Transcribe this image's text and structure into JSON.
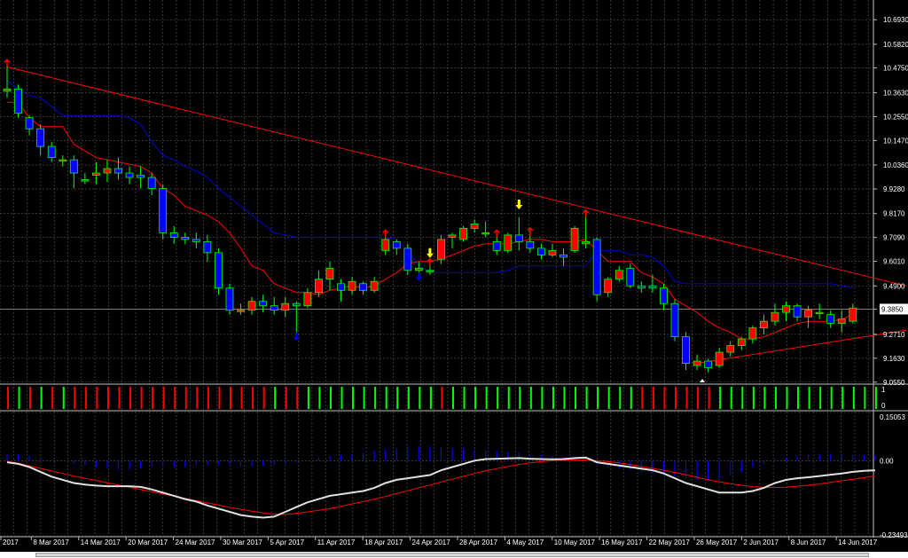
{
  "chart_data": [
    {
      "type": "candlestick",
      "ylim": [
        9.05,
        10.75
      ],
      "y_axis_labels": [
        "10.6930",
        "10.5820",
        "10.4750",
        "10.3630",
        "10.2550",
        "10.1470",
        "10.0360",
        "9.9280",
        "9.8170",
        "9.7090",
        "9.6010",
        "9.4900",
        "9.3850",
        "9.2710",
        "9.1630",
        "9.0550"
      ],
      "y_axis_values": [
        10.693,
        10.582,
        10.475,
        10.363,
        10.255,
        10.147,
        10.036,
        9.928,
        9.817,
        9.709,
        9.601,
        9.49,
        9.385,
        9.271,
        9.163,
        9.055
      ],
      "current_price": "9.3850",
      "current_price_value": 9.385,
      "x_axis_labels": [
        "2017",
        "8 Mar 2017",
        "14 Mar 2017",
        "20 Mar 2017",
        "24 Mar 2017",
        "30 Mar 2017",
        "5 Apr 2017",
        "11 Apr 2017",
        "18 Apr 2017",
        "24 Apr 2017",
        "28 Apr 2017",
        "4 May 2017",
        "10 May 2017",
        "16 May 2017",
        "22 May 2017",
        "26 May 2017",
        "2 Jun 2017",
        "8 Jun 2017",
        "14 Jun 2017"
      ],
      "candles": [
        {
          "o": 10.37,
          "h": 10.48,
          "l": 10.34,
          "c": 10.38
        },
        {
          "o": 10.38,
          "h": 10.4,
          "l": 10.25,
          "c": 10.27
        },
        {
          "o": 10.25,
          "h": 10.26,
          "l": 10.17,
          "c": 10.2
        },
        {
          "o": 10.2,
          "h": 10.22,
          "l": 10.08,
          "c": 10.12
        },
        {
          "o": 10.12,
          "h": 10.14,
          "l": 10.05,
          "c": 10.07
        },
        {
          "o": 10.06,
          "h": 10.08,
          "l": 10.03,
          "c": 10.06
        },
        {
          "o": 10.06,
          "h": 10.08,
          "l": 9.93,
          "c": 10.0
        },
        {
          "o": 9.97,
          "h": 10.0,
          "l": 9.95,
          "c": 9.97
        },
        {
          "o": 9.99,
          "h": 10.05,
          "l": 9.95,
          "c": 10.0
        },
        {
          "o": 10.0,
          "h": 10.06,
          "l": 9.96,
          "c": 10.02
        },
        {
          "o": 10.02,
          "h": 10.07,
          "l": 9.97,
          "c": 10.0
        },
        {
          "o": 10.0,
          "h": 10.03,
          "l": 9.95,
          "c": 9.98
        },
        {
          "o": 9.99,
          "h": 10.03,
          "l": 9.93,
          "c": 9.98
        },
        {
          "o": 9.98,
          "h": 10.0,
          "l": 9.9,
          "c": 9.93
        },
        {
          "o": 9.93,
          "h": 9.95,
          "l": 9.7,
          "c": 9.73
        },
        {
          "o": 9.73,
          "h": 9.76,
          "l": 9.68,
          "c": 9.71
        },
        {
          "o": 9.71,
          "h": 9.73,
          "l": 9.68,
          "c": 9.7
        },
        {
          "o": 9.7,
          "h": 9.73,
          "l": 9.66,
          "c": 9.69
        },
        {
          "o": 9.69,
          "h": 9.72,
          "l": 9.6,
          "c": 9.64
        },
        {
          "o": 9.64,
          "h": 9.66,
          "l": 9.45,
          "c": 9.48
        },
        {
          "o": 9.48,
          "h": 9.5,
          "l": 9.36,
          "c": 9.38
        },
        {
          "o": 9.38,
          "h": 9.41,
          "l": 9.36,
          "c": 9.38
        },
        {
          "o": 9.38,
          "h": 9.44,
          "l": 9.36,
          "c": 9.42
        },
        {
          "o": 9.42,
          "h": 9.45,
          "l": 9.37,
          "c": 9.4
        },
        {
          "o": 9.4,
          "h": 9.44,
          "l": 9.36,
          "c": 9.38
        },
        {
          "o": 9.38,
          "h": 9.44,
          "l": 9.35,
          "c": 9.41
        },
        {
          "o": 9.41,
          "h": 9.42,
          "l": 9.28,
          "c": 9.4
        },
        {
          "o": 9.4,
          "h": 9.48,
          "l": 9.39,
          "c": 9.46
        },
        {
          "o": 9.46,
          "h": 9.56,
          "l": 9.44,
          "c": 9.52
        },
        {
          "o": 9.52,
          "h": 9.6,
          "l": 9.47,
          "c": 9.57
        },
        {
          "o": 9.5,
          "h": 9.52,
          "l": 9.42,
          "c": 9.47
        },
        {
          "o": 9.47,
          "h": 9.53,
          "l": 9.45,
          "c": 9.51
        },
        {
          "o": 9.5,
          "h": 9.51,
          "l": 9.45,
          "c": 9.47
        },
        {
          "o": 9.47,
          "h": 9.53,
          "l": 9.46,
          "c": 9.51
        },
        {
          "o": 9.65,
          "h": 9.71,
          "l": 9.63,
          "c": 9.7
        },
        {
          "o": 9.69,
          "h": 9.7,
          "l": 9.63,
          "c": 9.66
        },
        {
          "o": 9.66,
          "h": 9.68,
          "l": 9.54,
          "c": 9.56
        },
        {
          "o": 9.56,
          "h": 9.6,
          "l": 9.55,
          "c": 9.57
        },
        {
          "o": 9.56,
          "h": 9.58,
          "l": 9.54,
          "c": 9.56
        },
        {
          "o": 9.61,
          "h": 9.72,
          "l": 9.59,
          "c": 9.7
        },
        {
          "o": 9.71,
          "h": 9.73,
          "l": 9.66,
          "c": 9.72
        },
        {
          "o": 9.7,
          "h": 9.76,
          "l": 9.69,
          "c": 9.75
        },
        {
          "o": 9.75,
          "h": 9.79,
          "l": 9.73,
          "c": 9.77
        },
        {
          "o": 9.73,
          "h": 9.78,
          "l": 9.71,
          "c": 9.73
        },
        {
          "o": 9.69,
          "h": 9.71,
          "l": 9.63,
          "c": 9.65
        },
        {
          "o": 9.65,
          "h": 9.73,
          "l": 9.64,
          "c": 9.72
        },
        {
          "o": 9.72,
          "h": 9.8,
          "l": 9.65,
          "c": 9.69
        },
        {
          "o": 9.69,
          "h": 9.72,
          "l": 9.64,
          "c": 9.66
        },
        {
          "o": 9.66,
          "h": 9.68,
          "l": 9.61,
          "c": 9.63
        },
        {
          "o": 9.63,
          "h": 9.68,
          "l": 9.62,
          "c": 9.65
        },
        {
          "o": 9.63,
          "h": 9.66,
          "l": 9.58,
          "c": 9.62
        },
        {
          "o": 9.65,
          "h": 9.76,
          "l": 9.64,
          "c": 9.75
        },
        {
          "o": 9.68,
          "h": 9.8,
          "l": 9.66,
          "c": 9.69
        },
        {
          "o": 9.7,
          "h": 9.71,
          "l": 9.42,
          "c": 9.45
        },
        {
          "o": 9.46,
          "h": 9.53,
          "l": 9.44,
          "c": 9.52
        },
        {
          "o": 9.52,
          "h": 9.58,
          "l": 9.51,
          "c": 9.56
        },
        {
          "o": 9.57,
          "h": 9.59,
          "l": 9.48,
          "c": 9.49
        },
        {
          "o": 9.49,
          "h": 9.51,
          "l": 9.46,
          "c": 9.48
        },
        {
          "o": 9.49,
          "h": 9.54,
          "l": 9.46,
          "c": 9.48
        },
        {
          "o": 9.48,
          "h": 9.5,
          "l": 9.38,
          "c": 9.41
        },
        {
          "o": 9.41,
          "h": 9.43,
          "l": 9.24,
          "c": 9.26
        },
        {
          "o": 9.26,
          "h": 9.28,
          "l": 9.11,
          "c": 9.14
        },
        {
          "o": 9.13,
          "h": 9.18,
          "l": 9.11,
          "c": 9.15
        },
        {
          "o": 9.15,
          "h": 9.16,
          "l": 9.1,
          "c": 9.12
        },
        {
          "o": 9.13,
          "h": 9.21,
          "l": 9.12,
          "c": 9.19
        },
        {
          "o": 9.19,
          "h": 9.24,
          "l": 9.17,
          "c": 9.22
        },
        {
          "o": 9.22,
          "h": 9.26,
          "l": 9.2,
          "c": 9.25
        },
        {
          "o": 9.25,
          "h": 9.31,
          "l": 9.23,
          "c": 9.3
        },
        {
          "o": 9.3,
          "h": 9.36,
          "l": 9.27,
          "c": 9.33
        },
        {
          "o": 9.33,
          "h": 9.41,
          "l": 9.31,
          "c": 9.37
        },
        {
          "o": 9.37,
          "h": 9.42,
          "l": 9.33,
          "c": 9.4
        },
        {
          "o": 9.4,
          "h": 9.41,
          "l": 9.33,
          "c": 9.35
        },
        {
          "o": 9.35,
          "h": 9.4,
          "l": 9.3,
          "c": 9.38
        },
        {
          "o": 9.37,
          "h": 9.41,
          "l": 9.34,
          "c": 9.37
        },
        {
          "o": 9.36,
          "h": 9.38,
          "l": 9.3,
          "c": 9.32
        },
        {
          "o": 9.32,
          "h": 9.38,
          "l": 9.28,
          "c": 9.34
        },
        {
          "o": 9.33,
          "h": 9.41,
          "l": 9.32,
          "c": 9.39
        }
      ],
      "tenkan_line": [
        10.32,
        10.32,
        10.25,
        10.21,
        10.21,
        10.21,
        10.13,
        10.1,
        10.07,
        10.06,
        10.05,
        10.04,
        10.03,
        10.0,
        9.93,
        9.9,
        9.85,
        9.83,
        9.81,
        9.78,
        9.73,
        9.66,
        9.58,
        9.56,
        9.5,
        9.48,
        9.46,
        9.46,
        9.45,
        9.47,
        9.48,
        9.49,
        9.48,
        9.49,
        9.52,
        9.55,
        9.59,
        9.6,
        9.6,
        9.61,
        9.63,
        9.65,
        9.67,
        9.68,
        9.68,
        9.68,
        9.69,
        9.7,
        9.7,
        9.69,
        9.69,
        9.69,
        9.7,
        9.65,
        9.6,
        9.6,
        9.6,
        9.55,
        9.53,
        9.5,
        9.43,
        9.4,
        9.37,
        9.33,
        9.3,
        9.28,
        9.25,
        9.25,
        9.26,
        9.28,
        9.3,
        9.32,
        9.33,
        9.33,
        9.33,
        9.34,
        9.36
      ],
      "kijun_line": [
        10.42,
        10.38,
        10.35,
        10.34,
        10.3,
        10.26,
        10.26,
        10.26,
        10.26,
        10.26,
        10.26,
        10.25,
        10.22,
        10.14,
        10.08,
        10.06,
        10.03,
        10.01,
        9.98,
        9.93,
        9.89,
        9.85,
        9.81,
        9.77,
        9.73,
        9.72,
        9.71,
        9.71,
        9.71,
        9.71,
        9.71,
        9.71,
        9.71,
        9.71,
        9.71,
        9.7,
        9.65,
        9.58,
        9.55,
        9.55,
        9.55,
        9.55,
        9.55,
        9.55,
        9.55,
        9.56,
        9.58,
        9.58,
        9.58,
        9.58,
        9.58,
        9.58,
        9.58,
        9.65,
        9.65,
        9.65,
        9.63,
        9.63,
        9.62,
        9.58,
        9.51,
        9.5,
        9.5,
        9.5,
        9.5,
        9.5,
        9.5,
        9.5,
        9.5,
        9.5,
        9.5,
        9.5,
        9.5,
        9.5,
        9.5,
        9.49,
        9.48
      ],
      "trendline_upper": {
        "from": {
          "bar": 0,
          "price": 10.48
        },
        "to": {
          "bar": 80,
          "price": 9.49
        }
      },
      "trendline_lower": {
        "from": {
          "bar": 62,
          "price": 9.14
        },
        "to": {
          "bar": 80,
          "price": 9.29
        }
      },
      "signal_arrows": [
        {
          "bar": 38,
          "dir": "down",
          "type": "yellow-arrow"
        },
        {
          "bar": 46,
          "dir": "down",
          "type": "yellow-arrow"
        }
      ],
      "fractals_up": [
        0,
        34,
        38,
        44,
        47,
        52
      ],
      "fractals_down": [
        26,
        37
      ],
      "fractal_white_bar": 62
    },
    {
      "type": "histogram",
      "name": "trend-bars",
      "y_axis_labels": [
        "1",
        "0"
      ],
      "bars": [
        0,
        1,
        0,
        1,
        0,
        1,
        0,
        0,
        0,
        0,
        0,
        0,
        0,
        0,
        0,
        0,
        0,
        0,
        0,
        0,
        0,
        0,
        0,
        0,
        1,
        0,
        0,
        1,
        1,
        1,
        1,
        1,
        1,
        1,
        1,
        1,
        1,
        1,
        1,
        0,
        1,
        1,
        1,
        1,
        1,
        1,
        1,
        1,
        1,
        1,
        1,
        1,
        1,
        1,
        1,
        1,
        1,
        0,
        0,
        0,
        0,
        0,
        0,
        0,
        1,
        1,
        1,
        1,
        1,
        1,
        1,
        1,
        1,
        1,
        1,
        1,
        1,
        1,
        1
      ]
    },
    {
      "type": "line",
      "name": "oscillator",
      "y_axis_labels": [
        "0.15053",
        "0.00",
        "-0.23493"
      ],
      "y_axis_values": [
        0.15053,
        0.0,
        -0.23493
      ],
      "ylim": [
        -0.23493,
        0.15053
      ],
      "histogram": [
        0.02,
        0.02,
        0.015,
        0.01,
        0.005,
        0.0,
        -0.01,
        -0.015,
        -0.02,
        -0.025,
        -0.028,
        -0.028,
        -0.025,
        -0.02,
        -0.02,
        -0.02,
        -0.02,
        -0.018,
        -0.015,
        -0.012,
        -0.015,
        -0.018,
        -0.018,
        -0.015,
        -0.012,
        -0.01,
        -0.005,
        0.0,
        0.01,
        0.015,
        0.018,
        0.02,
        0.025,
        0.03,
        0.035,
        0.04,
        0.045,
        0.045,
        0.045,
        0.043,
        0.04,
        0.038,
        0.035,
        0.032,
        0.03,
        0.028,
        0.025,
        0.02,
        0.018,
        0.015,
        0.012,
        0.01,
        0.008,
        -0.01,
        -0.02,
        -0.025,
        -0.03,
        -0.035,
        -0.04,
        -0.045,
        -0.05,
        -0.055,
        -0.06,
        -0.06,
        -0.055,
        -0.045,
        -0.035,
        -0.02,
        -0.01,
        0.005,
        0.01,
        0.015,
        0.02,
        0.022,
        0.022,
        0.02,
        0.018,
        0.018,
        0.018
      ],
      "main_line": [
        -0.005,
        -0.01,
        -0.02,
        -0.035,
        -0.05,
        -0.06,
        -0.07,
        -0.075,
        -0.078,
        -0.08,
        -0.08,
        -0.08,
        -0.082,
        -0.09,
        -0.1,
        -0.11,
        -0.12,
        -0.128,
        -0.14,
        -0.15,
        -0.16,
        -0.17,
        -0.175,
        -0.178,
        -0.175,
        -0.16,
        -0.145,
        -0.13,
        -0.12,
        -0.11,
        -0.105,
        -0.1,
        -0.095,
        -0.085,
        -0.07,
        -0.06,
        -0.055,
        -0.05,
        -0.045,
        -0.03,
        -0.02,
        -0.01,
        0.0,
        0.005,
        0.006,
        0.007,
        0.008,
        0.006,
        0.005,
        0.004,
        0.005,
        0.008,
        0.01,
        -0.005,
        -0.01,
        -0.015,
        -0.02,
        -0.025,
        -0.03,
        -0.04,
        -0.055,
        -0.07,
        -0.08,
        -0.09,
        -0.1,
        -0.1,
        -0.1,
        -0.095,
        -0.085,
        -0.07,
        -0.06,
        -0.055,
        -0.052,
        -0.048,
        -0.044,
        -0.04,
        -0.035,
        -0.032,
        -0.03
      ],
      "signal_line": [
        -0.002,
        -0.008,
        -0.016,
        -0.024,
        -0.032,
        -0.04,
        -0.048,
        -0.055,
        -0.062,
        -0.069,
        -0.076,
        -0.083,
        -0.09,
        -0.097,
        -0.104,
        -0.111,
        -0.118,
        -0.125,
        -0.132,
        -0.139,
        -0.146,
        -0.152,
        -0.158,
        -0.163,
        -0.167,
        -0.168,
        -0.165,
        -0.16,
        -0.155,
        -0.15,
        -0.143,
        -0.135,
        -0.128,
        -0.12,
        -0.112,
        -0.103,
        -0.094,
        -0.085,
        -0.076,
        -0.067,
        -0.058,
        -0.049,
        -0.04,
        -0.032,
        -0.025,
        -0.018,
        -0.012,
        -0.007,
        -0.003,
        0.0,
        0.002,
        0.003,
        0.002,
        0.0,
        -0.003,
        -0.007,
        -0.012,
        -0.018,
        -0.024,
        -0.03,
        -0.037,
        -0.044,
        -0.052,
        -0.06,
        -0.066,
        -0.072,
        -0.077,
        -0.081,
        -0.083,
        -0.084,
        -0.083,
        -0.08,
        -0.077,
        -0.073,
        -0.068,
        -0.063,
        -0.058,
        -0.053,
        -0.048
      ]
    }
  ],
  "colors": {
    "background": "#000000",
    "grid": "#5a5a5a",
    "bull_candle": "#ff0000",
    "bear_candle": "#0000ff",
    "wick": "#00ff00",
    "tenkan": "#ff0000",
    "kijun": "#0000cc",
    "trendline": "#ff0000",
    "trend_bar_up": "#00ff00",
    "trend_bar_down": "#ff0000",
    "osc_hist": "#0000ff",
    "osc_main": "#e0e0e0",
    "osc_signal": "#ff0000",
    "arrow_yellow": "#ffff00",
    "axis_text": "#ffffff"
  }
}
